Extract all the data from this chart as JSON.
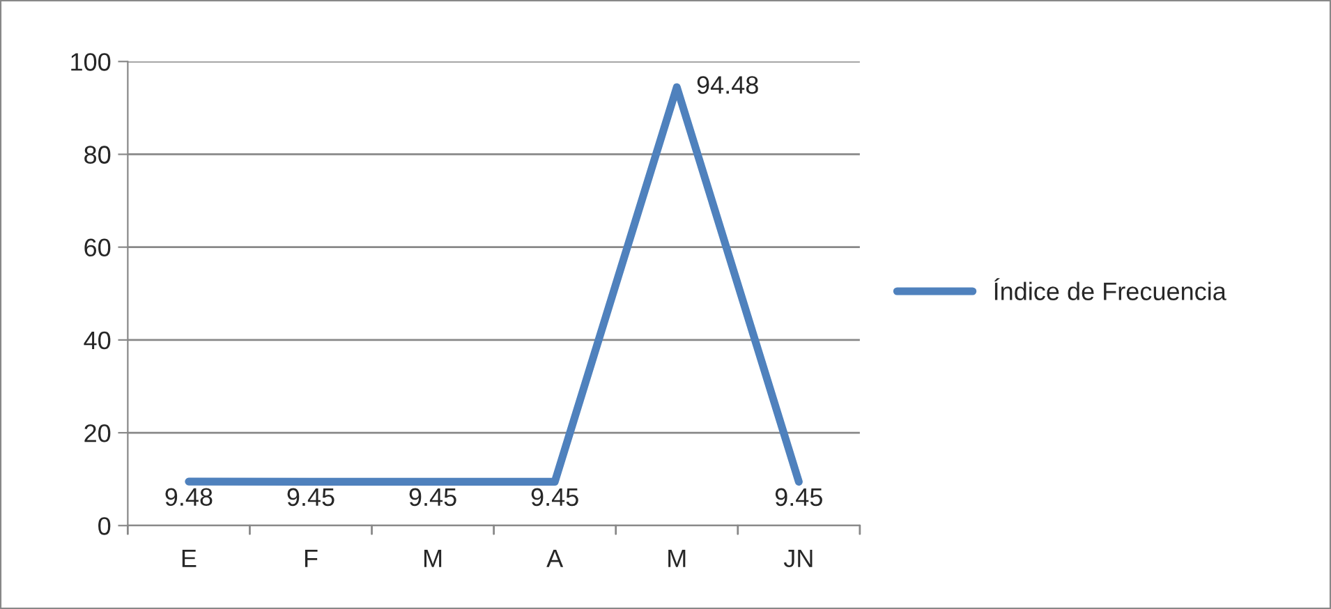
{
  "chart_data": {
    "type": "line",
    "categories": [
      "E",
      "F",
      "M",
      "A",
      "M",
      "JN"
    ],
    "series": [
      {
        "name": "Índice de Frecuencia",
        "color": "#4f81bd",
        "values": [
          9.48,
          9.45,
          9.45,
          9.45,
          94.48,
          9.45
        ]
      }
    ],
    "ylim": [
      0,
      100
    ],
    "yticks": [
      0,
      20,
      40,
      60,
      80,
      100
    ],
    "grid": "y",
    "legend": "right",
    "data_labels": true,
    "marker": "none",
    "line_style": "solid"
  }
}
